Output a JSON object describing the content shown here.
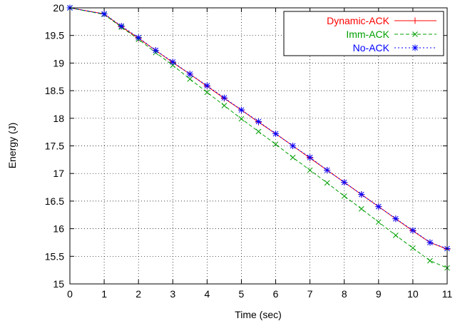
{
  "chart_data": {
    "type": "line",
    "title": "",
    "xlabel": "Time (sec)",
    "ylabel": "Energy (J)",
    "xlim": [
      0,
      11
    ],
    "ylim": [
      15,
      20
    ],
    "x_ticks": [
      0,
      1,
      2,
      3,
      4,
      5,
      6,
      7,
      8,
      9,
      10,
      11
    ],
    "y_ticks": [
      15,
      15.5,
      16,
      16.5,
      17,
      17.5,
      18,
      18.5,
      19,
      19.5,
      20
    ],
    "x_tick_labels": [
      "0",
      "1",
      "2",
      "3",
      "4",
      "5",
      "6",
      "7",
      "8",
      "9",
      "10",
      "11"
    ],
    "y_tick_labels": [
      "15",
      "15.5",
      "16",
      "16.5",
      "17",
      "17.5",
      "18",
      "18.5",
      "19",
      "19.5",
      "20"
    ],
    "grid": true,
    "legend_position": "top-right",
    "x": [
      0,
      1,
      1.5,
      2,
      2.5,
      3,
      3.5,
      4,
      4.5,
      5,
      5.5,
      6,
      6.5,
      7,
      7.5,
      8,
      8.5,
      9,
      9.5,
      10,
      10.5,
      11
    ],
    "series": [
      {
        "name": "Dynamic-ACK",
        "color": "#ff0000",
        "dash": "solid",
        "marker": "plus",
        "values": [
          20,
          19.89,
          19.66,
          19.45,
          19.23,
          19.01,
          18.8,
          18.58,
          18.36,
          18.15,
          17.93,
          17.72,
          17.5,
          17.28,
          17.06,
          16.84,
          16.62,
          16.4,
          16.18,
          15.96,
          15.75,
          15.63
        ]
      },
      {
        "name": "Imm-ACK",
        "color": "#00a000",
        "dash": "dashed",
        "marker": "x",
        "values": [
          20,
          19.88,
          19.65,
          19.43,
          19.19,
          18.96,
          18.71,
          18.47,
          18.23,
          17.99,
          17.76,
          17.53,
          17.29,
          17.06,
          16.83,
          16.59,
          16.36,
          16.12,
          15.88,
          15.65,
          15.42,
          15.29
        ]
      },
      {
        "name": "No-ACK",
        "color": "#0000ff",
        "dash": "dotted",
        "marker": "star",
        "values": [
          20,
          19.89,
          19.67,
          19.46,
          19.23,
          19.02,
          18.8,
          18.59,
          18.37,
          18.15,
          17.94,
          17.72,
          17.5,
          17.29,
          17.06,
          16.84,
          16.62,
          16.4,
          16.18,
          15.97,
          15.75,
          15.64
        ]
      }
    ]
  }
}
